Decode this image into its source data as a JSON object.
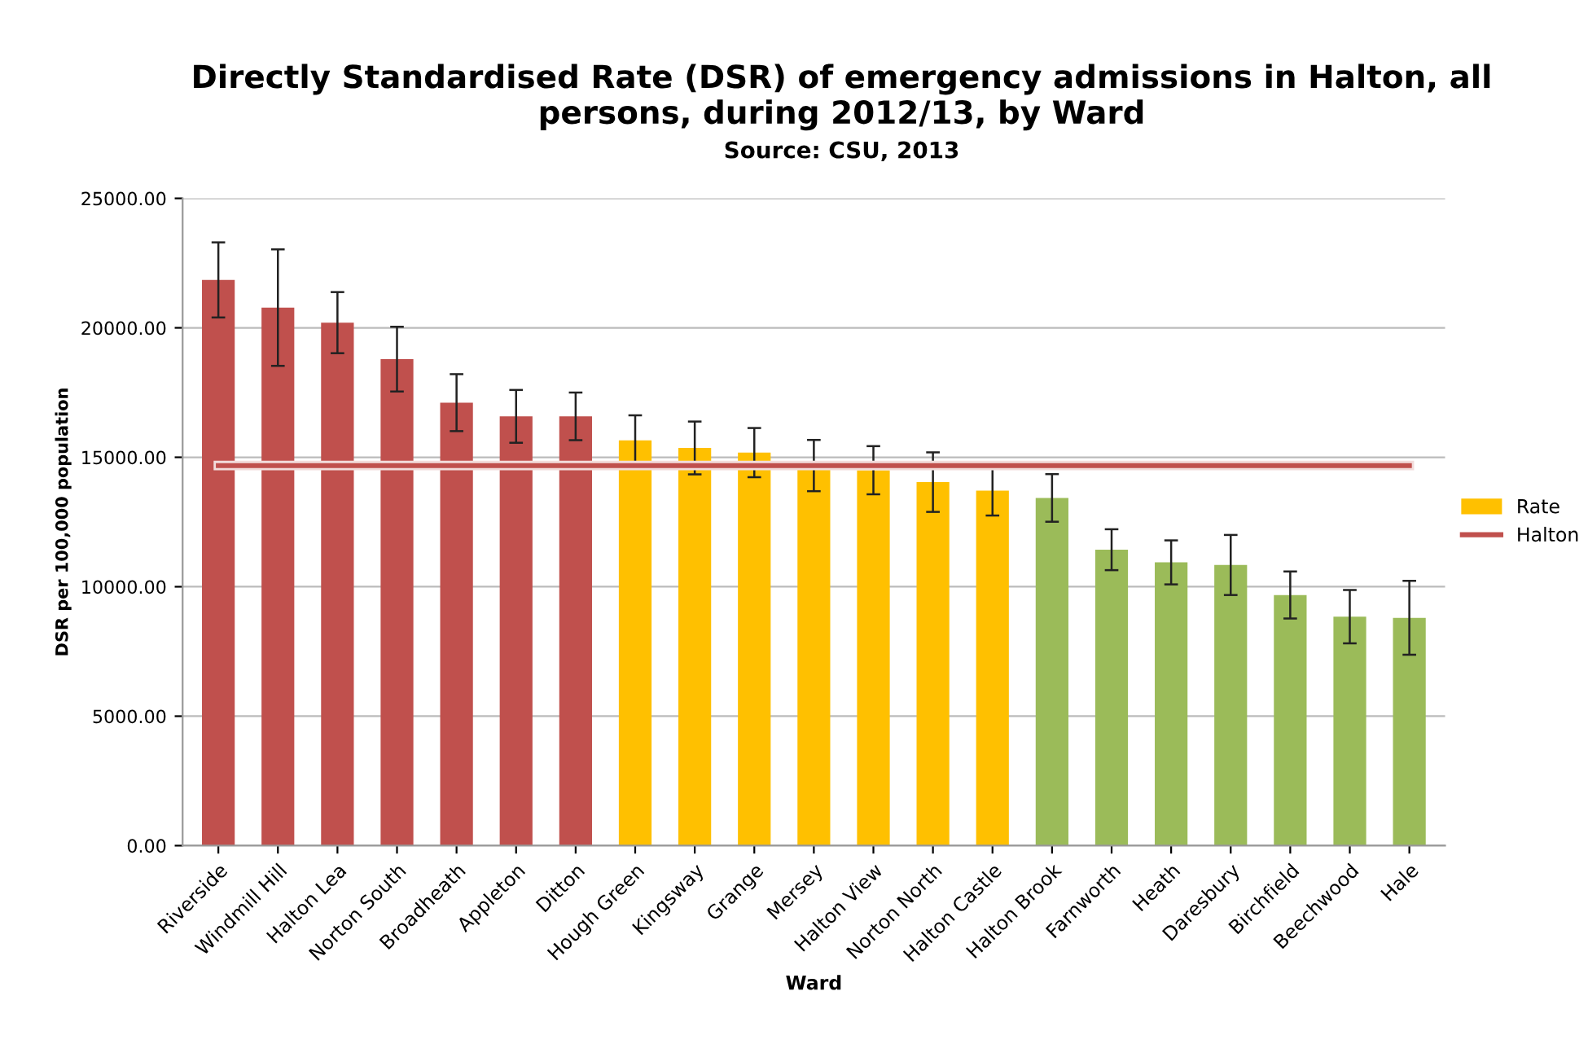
{
  "chart_data": {
    "type": "bar",
    "title": "Directly Standardised Rate (DSR) of emergency admissions in Halton, all\npersons, during 2012/13, by Ward",
    "subtitle": "Source: CSU, 2013",
    "xlabel": "Ward",
    "ylabel": "DSR per 100,000 population",
    "categories": [
      "Riverside",
      "Windmill Hill",
      "Halton Lea",
      "Norton South",
      "Broadheath",
      "Appleton",
      "Ditton",
      "Hough Green",
      "Kingsway",
      "Grange",
      "Mersey",
      "Halton View",
      "Norton North",
      "Halton Castle",
      "Halton Brook",
      "Farnworth",
      "Heath",
      "Daresbury",
      "Birchfield",
      "Beechwood",
      "Hale"
    ],
    "series": [
      {
        "name": "Rate",
        "color": "#ffc000",
        "colors": [
          "#c0504d",
          "#c0504d",
          "#c0504d",
          "#c0504d",
          "#c0504d",
          "#c0504d",
          "#c0504d",
          "#ffc000",
          "#ffc000",
          "#ffc000",
          "#ffc000",
          "#ffc000",
          "#ffc000",
          "#ffc000",
          "#9bbb59",
          "#9bbb59",
          "#9bbb59",
          "#9bbb59",
          "#9bbb59",
          "#9bbb59",
          "#9bbb59"
        ],
        "values": [
          21850,
          20780,
          20200,
          18790,
          17110,
          16580,
          16580,
          15650,
          15360,
          15180,
          14680,
          14500,
          14040,
          13710,
          13430,
          11430,
          10940,
          10840,
          9680,
          8840,
          8800
        ],
        "errors": [
          1450,
          2250,
          1180,
          1250,
          1100,
          1020,
          920,
          970,
          1020,
          950,
          990,
          930,
          1150,
          960,
          920,
          790,
          850,
          1160,
          910,
          1030,
          1430
        ]
      },
      {
        "name": "Halton",
        "type": "line",
        "color": "#c0504d",
        "values": [
          14680,
          14680,
          14680,
          14680,
          14680,
          14680,
          14680,
          14680,
          14680,
          14680,
          14680,
          14680,
          14680,
          14680,
          14680,
          14680,
          14680,
          14680,
          14680,
          14680,
          14680
        ]
      }
    ],
    "ylim": [
      0,
      25000
    ],
    "yticks": [
      {
        "value": 0,
        "label": "0.00"
      },
      {
        "value": 5000,
        "label": "5000.00"
      },
      {
        "value": 10000,
        "label": "10000.00"
      },
      {
        "value": 15000,
        "label": "15000.00"
      },
      {
        "value": 20000,
        "label": "20000.00"
      },
      {
        "value": 25000,
        "label": "25000.00"
      }
    ],
    "grid": "y",
    "legend": "right",
    "marker": "none",
    "line_style": "solid"
  }
}
